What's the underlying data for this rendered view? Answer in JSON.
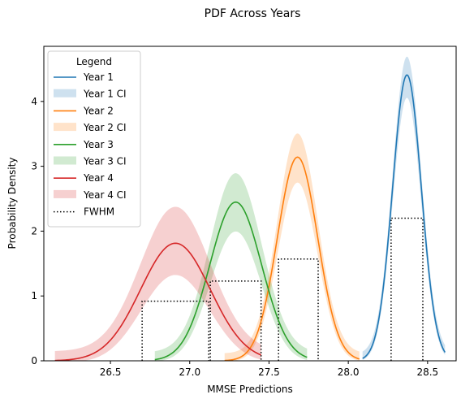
{
  "chart_data": {
    "type": "line",
    "title": "PDF Across Years",
    "xlabel": "MMSE Predictions",
    "ylabel": "Probability Density",
    "xlim": [
      26.08,
      28.68
    ],
    "ylim": [
      0,
      4.85
    ],
    "xticks": [
      "26.5",
      "27.0",
      "27.5",
      "28.0",
      "28.5"
    ],
    "xtick_values": [
      26.5,
      27.0,
      27.5,
      28.0,
      28.5
    ],
    "yticks": [
      "0",
      "1",
      "2",
      "3",
      "4"
    ],
    "ytick_values": [
      0,
      1,
      2,
      3,
      4
    ],
    "grid": false,
    "legend": {
      "title": "Legend",
      "placement": "top-left",
      "entries": [
        "Year 1",
        "Year 1 CI",
        "Year 2",
        "Year 2 CI",
        "Year 3",
        "Year 3 CI",
        "Year 4",
        "Year 4 CI",
        "FWHM"
      ]
    },
    "series": [
      {
        "name": "Year 1",
        "color": "#1f77b4",
        "mean": 28.37,
        "sd": 0.0905,
        "x_range": [
          28.09,
          28.61
        ],
        "ci_lo_scale": 0.95,
        "ci_hi_scale": 1.04,
        "ci_spread": 0.06,
        "fwhm": [
          28.27,
          28.47
        ],
        "fwhm_height": 2.2
      },
      {
        "name": "Year 2",
        "color": "#ff7f0e",
        "mean": 27.68,
        "sd": 0.127,
        "x_range": [
          27.22,
          28.07
        ],
        "ci_lo_scale": 0.92,
        "ci_hi_scale": 1.08,
        "ci_spread": 0.09,
        "fwhm": [
          27.56,
          27.81
        ],
        "fwhm_height": 1.57
      },
      {
        "name": "Year 3",
        "color": "#2ca02c",
        "mean": 27.29,
        "sd": 0.163,
        "x_range": [
          26.78,
          27.74
        ],
        "ci_lo_scale": 0.88,
        "ci_hi_scale": 1.13,
        "ci_spread": 0.13,
        "fwhm": [
          27.13,
          27.45
        ],
        "fwhm_height": 1.23
      },
      {
        "name": "Year 4",
        "color": "#d62728",
        "mean": 26.91,
        "sd": 0.22,
        "x_range": [
          26.15,
          27.45
        ],
        "ci_lo_scale": 0.83,
        "ci_hi_scale": 1.23,
        "ci_spread": 0.2,
        "fwhm": [
          26.7,
          27.12
        ],
        "fwhm_height": 0.92
      }
    ]
  }
}
